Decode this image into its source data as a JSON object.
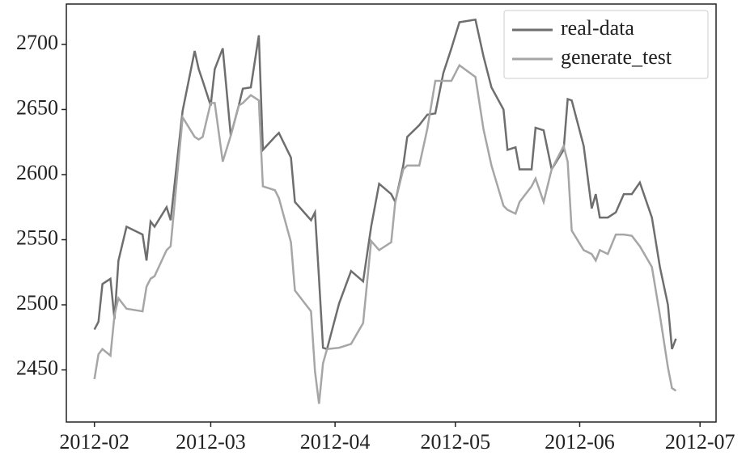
{
  "chart_data": {
    "type": "line",
    "x": [
      "2012-02-01",
      "2012-02-02",
      "2012-02-03",
      "2012-02-05",
      "2012-02-06",
      "2012-02-07",
      "2012-02-09",
      "2012-02-13",
      "2012-02-14",
      "2012-02-15",
      "2012-02-16",
      "2012-02-19",
      "2012-02-20",
      "2012-02-23",
      "2012-02-26",
      "2012-02-27",
      "2012-02-28",
      "2012-03-01",
      "2012-03-02",
      "2012-03-04",
      "2012-03-06",
      "2012-03-08",
      "2012-03-09",
      "2012-03-11",
      "2012-03-13",
      "2012-03-14",
      "2012-03-17",
      "2012-03-18",
      "2012-03-21",
      "2012-03-22",
      "2012-03-26",
      "2012-03-27",
      "2012-03-28",
      "2012-03-29",
      "2012-03-30",
      "2012-04-02",
      "2012-04-05",
      "2012-04-08",
      "2012-04-10",
      "2012-04-12",
      "2012-04-15",
      "2012-04-16",
      "2012-04-18",
      "2012-04-19",
      "2012-04-22",
      "2012-04-24",
      "2012-04-26",
      "2012-04-28",
      "2012-04-30",
      "2012-05-02",
      "2012-05-06",
      "2012-05-08",
      "2012-05-10",
      "2012-05-13",
      "2012-05-14",
      "2012-05-16",
      "2012-05-17",
      "2012-05-20",
      "2012-05-21",
      "2012-05-23",
      "2012-05-25",
      "2012-05-28",
      "2012-05-29",
      "2012-05-30",
      "2012-06-02",
      "2012-06-04",
      "2012-06-05",
      "2012-06-06",
      "2012-06-08",
      "2012-06-10",
      "2012-06-12",
      "2012-06-14",
      "2012-06-16",
      "2012-06-19",
      "2012-06-21",
      "2012-06-23",
      "2012-06-24",
      "2012-06-25"
    ],
    "series": [
      {
        "name": "real-data",
        "color": "#6e6e6e",
        "values": [
          2481,
          2487,
          2516,
          2520,
          2489,
          2534,
          2560,
          2554,
          2534,
          2564,
          2560,
          2575,
          2565,
          2649,
          2695,
          2681,
          2672,
          2653,
          2681,
          2697,
          2630,
          2653,
          2666,
          2667,
          2707,
          2619,
          2629,
          2632,
          2613,
          2579,
          2565,
          2571,
          2520,
          2467,
          2466,
          2501,
          2526,
          2518,
          2560,
          2593,
          2585,
          2579,
          2607,
          2629,
          2638,
          2646,
          2647,
          2678,
          2697,
          2717,
          2719,
          2691,
          2667,
          2650,
          2619,
          2621,
          2604,
          2604,
          2636,
          2634,
          2604,
          2619,
          2658,
          2657,
          2622,
          2574,
          2585,
          2567,
          2567,
          2571,
          2585,
          2585,
          2594,
          2567,
          2529,
          2500,
          2466,
          2474
        ]
      },
      {
        "name": "generate_test",
        "color": "#a6a6a6",
        "values": [
          2443,
          2462,
          2466,
          2461,
          2492,
          2505,
          2497,
          2495,
          2514,
          2520,
          2522,
          2542,
          2545,
          2644,
          2629,
          2627,
          2629,
          2655,
          2655,
          2610,
          2630,
          2653,
          2655,
          2661,
          2657,
          2591,
          2588,
          2582,
          2548,
          2511,
          2495,
          2449,
          2424,
          2455,
          2466,
          2467,
          2470,
          2486,
          2549,
          2542,
          2548,
          2579,
          2604,
          2607,
          2607,
          2635,
          2672,
          2672,
          2672,
          2684,
          2675,
          2635,
          2607,
          2576,
          2573,
          2570,
          2579,
          2591,
          2597,
          2579,
          2604,
          2622,
          2610,
          2557,
          2542,
          2539,
          2534,
          2542,
          2539,
          2554,
          2554,
          2553,
          2545,
          2529,
          2492,
          2452,
          2436,
          2434
        ]
      }
    ],
    "xlim": [
      "2012-01-25",
      "2012-07-05"
    ],
    "xticks": [
      "2012-02",
      "2012-03",
      "2012-04",
      "2012-05",
      "2012-06",
      "2012-07"
    ],
    "ylim": [
      2410,
      2731
    ],
    "yticks": [
      2450,
      2500,
      2550,
      2600,
      2650,
      2700
    ],
    "legend": "upper right"
  }
}
